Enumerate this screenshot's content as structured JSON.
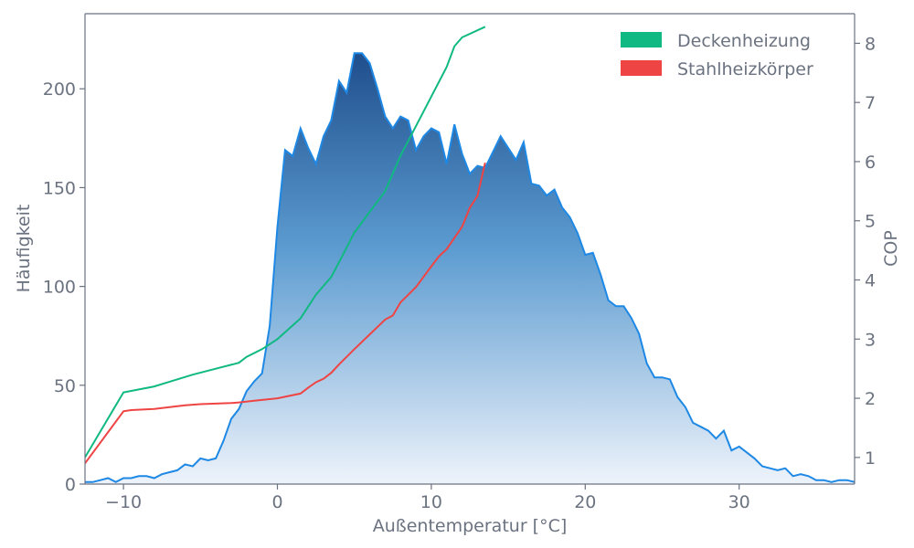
{
  "chart_data": {
    "type": "area",
    "xlabel": "Außentemperatur [°C]",
    "ylabel": "Häufigkeit",
    "y2label": "COP",
    "xlim": [
      -12.5,
      37.5
    ],
    "ylim": [
      0,
      238
    ],
    "y2lim": [
      0.55,
      8.5
    ],
    "x_ticks": [
      -10,
      0,
      10,
      20,
      30
    ],
    "x_tick_labels": [
      "−10",
      "0",
      "10",
      "20",
      "30"
    ],
    "y_ticks": [
      0,
      50,
      100,
      150,
      200
    ],
    "y2_ticks": [
      1,
      2,
      3,
      4,
      5,
      6,
      7,
      8
    ],
    "grid": false,
    "legend_position": "top-right",
    "colors": {
      "area_top": "#1f4e8c",
      "area_bottom": "#eef3fb",
      "area_line": "#1e88e5",
      "deckenheizung": "#10b981",
      "stahlheizkoerper": "#ef4444",
      "axis": "#6b7280"
    },
    "histogram": {
      "name": "Häufigkeit",
      "x": [
        -12.5,
        -12,
        -11.5,
        -11,
        -10.5,
        -10,
        -9.5,
        -9,
        -8.5,
        -8,
        -7.5,
        -7,
        -6.5,
        -6,
        -5.5,
        -5,
        -4.5,
        -4,
        -3.5,
        -3,
        -2.5,
        -2,
        -1.5,
        -1,
        -0.5,
        0,
        0.5,
        1,
        1.5,
        2,
        2.5,
        3,
        3.5,
        4,
        4.5,
        5,
        5.5,
        6,
        6.5,
        7,
        7.5,
        8,
        8.5,
        9,
        9.5,
        10,
        10.5,
        11,
        11.5,
        12,
        12.5,
        13,
        13.5,
        14,
        14.5,
        15,
        15.5,
        16,
        16.5,
        17,
        17.5,
        18,
        18.5,
        19,
        19.5,
        20,
        20.5,
        21,
        21.5,
        22,
        22.5,
        23,
        23.5,
        24,
        24.5,
        25,
        25.5,
        26,
        26.5,
        27,
        27.5,
        28,
        28.5,
        29,
        29.5,
        30,
        30.5,
        31,
        31.5,
        32,
        32.5,
        33,
        33.5,
        34,
        34.5,
        35,
        35.5,
        36,
        36.5,
        37,
        37.5
      ],
      "values": [
        1,
        1,
        2,
        3,
        1,
        3,
        3,
        4,
        4,
        3,
        5,
        6,
        7,
        10,
        9,
        13,
        12,
        13,
        22,
        33,
        38,
        47,
        52,
        56,
        80,
        130,
        169,
        166,
        180,
        170,
        162,
        176,
        184,
        204,
        198,
        218,
        218,
        213,
        200,
        186,
        180,
        186,
        184,
        169,
        176,
        180,
        178,
        162,
        182,
        167,
        157,
        161,
        160,
        168,
        176,
        170,
        164,
        173,
        152,
        151,
        146,
        149,
        140,
        135,
        127,
        116,
        117,
        106,
        93,
        90,
        90,
        84,
        76,
        61,
        54,
        54,
        53,
        44,
        39,
        31,
        29,
        27,
        23,
        27,
        17,
        19,
        16,
        13,
        9,
        8,
        7,
        8,
        4,
        5,
        4,
        2,
        2,
        1,
        2,
        2,
        1
      ]
    },
    "series": [
      {
        "name": "Deckenheizung",
        "axis": "right",
        "x": [
          -12.5,
          -10,
          -8,
          -7,
          -5.5,
          -4,
          -2.5,
          -2,
          -1,
          0,
          1.5,
          2,
          2.5,
          3,
          3.5,
          4,
          4.5,
          5,
          6,
          7,
          7.5,
          8,
          9,
          10,
          11,
          11.5,
          12,
          13.5
        ],
        "values": [
          1.0,
          2.1,
          2.2,
          2.28,
          2.4,
          2.5,
          2.6,
          2.7,
          2.83,
          3.0,
          3.35,
          3.55,
          3.75,
          3.9,
          4.05,
          4.3,
          4.55,
          4.8,
          5.15,
          5.5,
          5.8,
          6.1,
          6.6,
          7.1,
          7.6,
          7.95,
          8.1,
          8.28
        ]
      },
      {
        "name": "Stahlheizkörper",
        "axis": "right",
        "x": [
          -12.5,
          -10,
          -9.5,
          -8,
          -7,
          -6,
          -5,
          -4,
          -3,
          -2.5,
          -1.5,
          0,
          1.5,
          2,
          2.5,
          3,
          3.5,
          4,
          5,
          6,
          7,
          7.5,
          8,
          9,
          10,
          10.5,
          11,
          12,
          12.5,
          13,
          13.5
        ],
        "values": [
          0.9,
          1.78,
          1.8,
          1.82,
          1.85,
          1.88,
          1.9,
          1.91,
          1.92,
          1.93,
          1.96,
          2.0,
          2.08,
          2.18,
          2.27,
          2.33,
          2.43,
          2.57,
          2.83,
          3.08,
          3.33,
          3.4,
          3.62,
          3.88,
          4.23,
          4.4,
          4.52,
          4.9,
          5.22,
          5.42,
          5.98
        ]
      }
    ]
  }
}
